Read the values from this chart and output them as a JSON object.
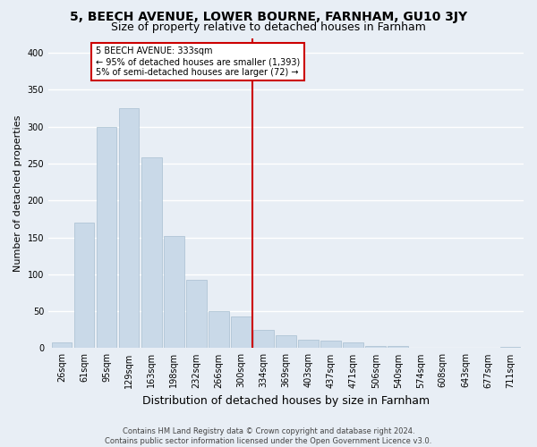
{
  "title": "5, BEECH AVENUE, LOWER BOURNE, FARNHAM, GU10 3JY",
  "subtitle": "Size of property relative to detached houses in Farnham",
  "xlabel": "Distribution of detached houses by size in Farnham",
  "ylabel": "Number of detached properties",
  "footer_line1": "Contains HM Land Registry data © Crown copyright and database right 2024.",
  "footer_line2": "Contains public sector information licensed under the Open Government Licence v3.0.",
  "categories": [
    "26sqm",
    "61sqm",
    "95sqm",
    "129sqm",
    "163sqm",
    "198sqm",
    "232sqm",
    "266sqm",
    "300sqm",
    "334sqm",
    "369sqm",
    "403sqm",
    "437sqm",
    "471sqm",
    "506sqm",
    "540sqm",
    "574sqm",
    "608sqm",
    "643sqm",
    "677sqm",
    "711sqm"
  ],
  "values": [
    8,
    170,
    300,
    325,
    258,
    152,
    93,
    50,
    43,
    25,
    18,
    12,
    10,
    8,
    3,
    3,
    1,
    0,
    0,
    1,
    2
  ],
  "bar_color": "#c9d9e8",
  "bar_edge_color": "#a8bfd0",
  "highlight_line_color": "#cc0000",
  "annotation_text": "5 BEECH AVENUE: 333sqm\n← 95% of detached houses are smaller (1,393)\n5% of semi-detached houses are larger (72) →",
  "annotation_box_facecolor": "#ffffff",
  "annotation_box_edgecolor": "#cc0000",
  "ylim": [
    0,
    420
  ],
  "yticks": [
    0,
    50,
    100,
    150,
    200,
    250,
    300,
    350,
    400
  ],
  "background_color": "#e8eef5",
  "grid_color": "#ffffff",
  "title_fontsize": 10,
  "subtitle_fontsize": 9,
  "ylabel_fontsize": 8,
  "xlabel_fontsize": 9,
  "tick_fontsize": 7,
  "annotation_fontsize": 7,
  "footer_fontsize": 6
}
